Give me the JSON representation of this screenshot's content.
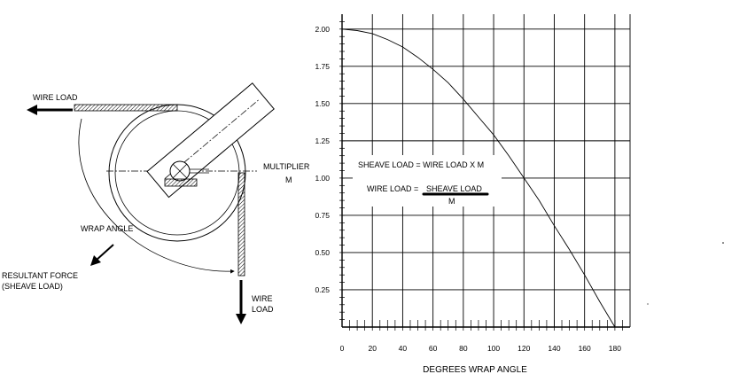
{
  "diagram": {
    "wire_load_top": "WIRE LOAD",
    "wire_load_bottom_1": "WIRE",
    "wire_load_bottom_2": "LOAD",
    "wrap_angle": "WRAP  ANGLE",
    "resultant_1": "RESULTANT FORCE",
    "resultant_2": "(SHEAVE LOAD)",
    "multiplier": "MULTIPLIER",
    "multiplier_symbol": "M"
  },
  "chart_data": {
    "type": "line",
    "title": "",
    "xlabel": "DEGREES WRAP ANGLE",
    "ylabel": "",
    "xlim": [
      0,
      190
    ],
    "ylim": [
      0,
      2.1
    ],
    "x_ticks": [
      0,
      20,
      40,
      60,
      80,
      100,
      120,
      140,
      160,
      180
    ],
    "y_ticks": [
      0.25,
      0.5,
      0.75,
      1.0,
      1.25,
      1.5,
      1.75,
      2.0
    ],
    "y_tick_labels": [
      "0.25",
      "0.50",
      "0.75",
      "1.00",
      "1.25",
      "1.50",
      "1.75",
      "2.00"
    ],
    "grid": true,
    "series": [
      {
        "x": [
          0,
          10,
          20,
          30,
          40,
          50,
          60,
          70,
          80,
          90,
          100,
          110,
          120,
          130,
          140,
          150,
          160,
          170,
          180
        ],
        "y": [
          2.0,
          1.99,
          1.97,
          1.93,
          1.88,
          1.81,
          1.73,
          1.64,
          1.53,
          1.41,
          1.29,
          1.15,
          1.0,
          0.85,
          0.68,
          0.52,
          0.35,
          0.17,
          0.0
        ]
      }
    ],
    "annotations": {
      "formula1": "SHEAVE LOAD = WIRE LOAD X M",
      "formula2_lhs": "WIRE LOAD =",
      "formula2_num": "SHEAVE LOAD",
      "formula2_den": "M"
    }
  }
}
